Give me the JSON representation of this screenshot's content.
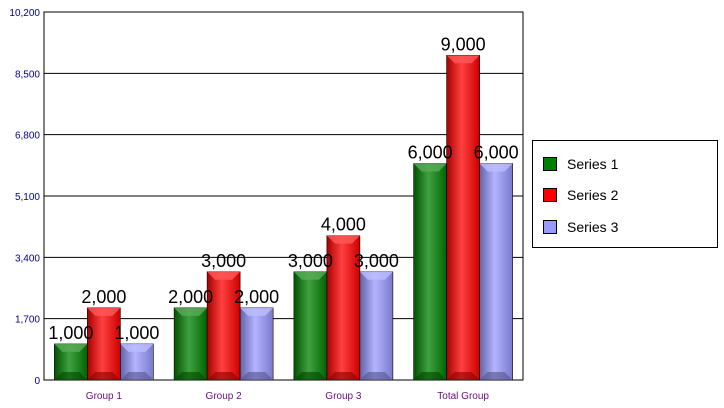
{
  "chart_data": {
    "type": "bar",
    "categories": [
      "Group 1",
      "Group 2",
      "Group 3",
      "Total Group"
    ],
    "series": [
      {
        "name": "Series 1",
        "values": [
          1000,
          2000,
          3000,
          6000
        ],
        "color": "#008000"
      },
      {
        "name": "Series 2",
        "values": [
          2000,
          3000,
          4000,
          9000
        ],
        "color": "#ff0000"
      },
      {
        "name": "Series 3",
        "values": [
          1000,
          2000,
          3000,
          6000
        ],
        "color": "#9999ff"
      }
    ],
    "y_ticks": [
      "0",
      "1,700",
      "3,400",
      "5,100",
      "6,800",
      "8,500",
      "10,200"
    ],
    "ylim": [
      0,
      10200
    ],
    "data_labels": [
      [
        "1,000",
        "2,000",
        "3,000",
        "6,000"
      ],
      [
        "2,000",
        "3,000",
        "4,000",
        "9,000"
      ],
      [
        "1,000",
        "2,000",
        "3,000",
        "6,000"
      ]
    ],
    "title": "",
    "xlabel": "",
    "ylabel": "",
    "grid": "horizontal",
    "legend_position": "right"
  }
}
